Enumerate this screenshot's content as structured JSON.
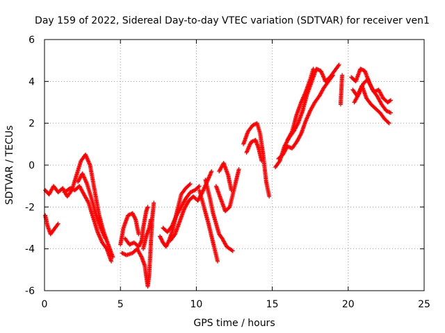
{
  "chart_data": {
    "type": "scatter",
    "title": "Day 159 of 2022, Sidereal Day-to-day VTEC variation (SDTVAR) for receiver ven1",
    "xlabel": "GPS time / hours",
    "ylabel": "SDTVAR / TECUs",
    "xlim": [
      0,
      25
    ],
    "ylim": [
      -6,
      6
    ],
    "xticks": [
      0,
      5,
      10,
      15,
      20,
      25
    ],
    "yticks": [
      -6,
      -4,
      -2,
      0,
      2,
      4,
      6
    ],
    "grid": true,
    "marker": "+",
    "series": [
      {
        "name": "ven1",
        "color": "#ff0000",
        "segments": [
          [
            [
              0.05,
              -1.2
            ],
            [
              0.3,
              -1.4
            ],
            [
              0.6,
              -1.0
            ],
            [
              0.9,
              -1.3
            ],
            [
              1.2,
              -1.1
            ],
            [
              1.5,
              -1.5
            ],
            [
              1.8,
              -1.2
            ],
            [
              2.1,
              -0.5
            ],
            [
              2.4,
              0.2
            ],
            [
              2.7,
              0.5
            ],
            [
              3.0,
              0.0
            ],
            [
              3.3,
              -1.2
            ],
            [
              3.6,
              -2.4
            ],
            [
              3.9,
              -3.2
            ],
            [
              4.2,
              -3.8
            ],
            [
              4.5,
              -4.4
            ]
          ],
          [
            [
              0.05,
              -2.4
            ],
            [
              0.2,
              -2.9
            ],
            [
              0.4,
              -3.3
            ],
            [
              0.6,
              -3.1
            ],
            [
              0.9,
              -2.8
            ]
          ],
          [
            [
              1.3,
              -1.3
            ],
            [
              1.7,
              -1.1
            ],
            [
              2.0,
              -1.2
            ],
            [
              2.3,
              -1.0
            ],
            [
              2.6,
              -1.4
            ],
            [
              2.9,
              -1.8
            ],
            [
              3.2,
              -2.5
            ],
            [
              3.5,
              -3.2
            ],
            [
              3.8,
              -3.7
            ],
            [
              4.1,
              -4.0
            ],
            [
              4.4,
              -4.6
            ]
          ],
          [
            [
              2.2,
              -0.8
            ],
            [
              2.5,
              -0.4
            ],
            [
              2.8,
              -0.9
            ],
            [
              3.1,
              -1.6
            ],
            [
              3.4,
              -2.4
            ],
            [
              3.7,
              -3.0
            ],
            [
              4.0,
              -3.5
            ]
          ],
          [
            [
              5.0,
              -3.8
            ],
            [
              5.2,
              -3.0
            ],
            [
              5.5,
              -2.4
            ],
            [
              5.8,
              -2.3
            ],
            [
              6.0,
              -2.6
            ],
            [
              6.2,
              -3.3
            ]
          ],
          [
            [
              5.1,
              -4.2
            ],
            [
              5.4,
              -4.3
            ],
            [
              5.8,
              -4.2
            ],
            [
              6.1,
              -4.0
            ],
            [
              6.4,
              -4.4
            ],
            [
              6.6,
              -4.8
            ],
            [
              6.8,
              -5.8
            ],
            [
              6.9,
              -5.2
            ],
            [
              7.0,
              -3.8
            ],
            [
              7.1,
              -2.5
            ],
            [
              7.2,
              -1.8
            ]
          ],
          [
            [
              5.3,
              -3.5
            ],
            [
              5.6,
              -3.8
            ],
            [
              5.9,
              -3.7
            ],
            [
              6.2,
              -3.9
            ],
            [
              6.4,
              -3.6
            ],
            [
              6.5,
              -3.0
            ],
            [
              6.7,
              -2.2
            ],
            [
              6.8,
              -2.0
            ]
          ],
          [
            [
              6.5,
              -4.0
            ],
            [
              6.7,
              -3.4
            ],
            [
              6.9,
              -3.0
            ],
            [
              7.0,
              -2.6
            ]
          ],
          [
            [
              7.6,
              -3.4
            ],
            [
              7.8,
              -3.7
            ],
            [
              8.0,
              -3.9
            ],
            [
              8.2,
              -3.6
            ],
            [
              8.4,
              -3.2
            ],
            [
              8.7,
              -2.3
            ],
            [
              9.0,
              -1.4
            ],
            [
              9.3,
              -1.1
            ],
            [
              9.6,
              -0.9
            ]
          ],
          [
            [
              7.8,
              -3.0
            ],
            [
              8.1,
              -3.2
            ],
            [
              8.4,
              -2.9
            ],
            [
              8.7,
              -2.4
            ],
            [
              9.0,
              -2.0
            ],
            [
              9.3,
              -1.6
            ],
            [
              9.6,
              -1.3
            ],
            [
              9.9,
              -1.2
            ],
            [
              10.2,
              -1.0
            ]
          ],
          [
            [
              8.3,
              -3.6
            ],
            [
              8.6,
              -3.3
            ],
            [
              8.9,
              -2.7
            ],
            [
              9.2,
              -2.1
            ],
            [
              9.5,
              -1.7
            ],
            [
              9.8,
              -1.5
            ],
            [
              10.1,
              -1.7
            ],
            [
              10.4,
              -1.3
            ],
            [
              10.7,
              -0.8
            ],
            [
              11.0,
              -0.3
            ]
          ],
          [
            [
              10.2,
              -1.2
            ],
            [
              10.5,
              -2.0
            ],
            [
              10.8,
              -2.8
            ],
            [
              11.0,
              -3.4
            ],
            [
              11.2,
              -4.0
            ],
            [
              11.4,
              -4.6
            ]
          ],
          [
            [
              10.6,
              -0.7
            ],
            [
              10.9,
              -1.6
            ],
            [
              11.1,
              -2.3
            ],
            [
              11.3,
              -2.8
            ],
            [
              11.5,
              -3.3
            ],
            [
              11.7,
              -3.5
            ],
            [
              12.0,
              -3.9
            ],
            [
              12.4,
              -4.1
            ]
          ],
          [
            [
              11.3,
              -1.0
            ],
            [
              11.6,
              -1.6
            ],
            [
              11.9,
              -2.2
            ],
            [
              12.2,
              -2.0
            ],
            [
              12.4,
              -1.4
            ],
            [
              12.6,
              -0.8
            ],
            [
              12.8,
              -0.2
            ]
          ],
          [
            [
              11.5,
              -0.3
            ],
            [
              11.8,
              0.1
            ],
            [
              12.1,
              -0.5
            ],
            [
              12.3,
              -1.2
            ]
          ],
          [
            [
              13.1,
              1.0
            ],
            [
              13.4,
              1.6
            ],
            [
              13.7,
              1.9
            ],
            [
              14.0,
              2.0
            ],
            [
              14.2,
              1.5
            ],
            [
              14.4,
              0.5
            ],
            [
              14.6,
              -0.8
            ],
            [
              14.8,
              -1.5
            ]
          ],
          [
            [
              13.3,
              0.6
            ],
            [
              13.6,
              1.1
            ],
            [
              13.9,
              1.2
            ],
            [
              14.1,
              0.8
            ],
            [
              14.3,
              0.2
            ]
          ],
          [
            [
              15.2,
              -0.1
            ],
            [
              15.5,
              0.2
            ],
            [
              15.8,
              0.9
            ],
            [
              16.1,
              1.3
            ],
            [
              16.4,
              1.6
            ],
            [
              16.7,
              2.0
            ],
            [
              17.0,
              2.6
            ],
            [
              17.3,
              3.4
            ],
            [
              17.6,
              4.0
            ],
            [
              17.9,
              4.6
            ],
            [
              18.2,
              4.5
            ],
            [
              18.5,
              4.0
            ],
            [
              18.8,
              4.2
            ],
            [
              19.1,
              4.5
            ],
            [
              19.4,
              4.8
            ]
          ],
          [
            [
              15.4,
              0.3
            ],
            [
              15.7,
              0.5
            ],
            [
              16.0,
              0.9
            ],
            [
              16.3,
              0.8
            ],
            [
              16.6,
              1.1
            ],
            [
              16.9,
              1.5
            ],
            [
              17.2,
              2.1
            ],
            [
              17.5,
              2.6
            ],
            [
              17.8,
              3.0
            ],
            [
              18.1,
              3.3
            ],
            [
              18.4,
              3.7
            ],
            [
              18.7,
              4.0
            ],
            [
              19.0,
              4.3
            ]
          ],
          [
            [
              16.0,
              1.2
            ],
            [
              16.3,
              1.6
            ],
            [
              16.6,
              2.4
            ],
            [
              16.9,
              3.0
            ],
            [
              17.2,
              3.5
            ],
            [
              17.5,
              4.1
            ],
            [
              17.7,
              4.6
            ]
          ],
          [
            [
              19.6,
              4.3
            ],
            [
              19.5,
              2.9
            ]
          ],
          [
            [
              20.2,
              4.2
            ],
            [
              20.5,
              4.0
            ],
            [
              20.8,
              4.6
            ],
            [
              21.1,
              4.5
            ],
            [
              21.4,
              3.9
            ],
            [
              21.7,
              3.5
            ],
            [
              22.0,
              3.6
            ],
            [
              22.3,
              3.2
            ],
            [
              22.6,
              3.0
            ],
            [
              22.8,
              3.1
            ]
          ],
          [
            [
              20.3,
              3.6
            ],
            [
              20.6,
              3.3
            ],
            [
              20.9,
              3.8
            ],
            [
              21.2,
              3.2
            ],
            [
              21.5,
              2.9
            ],
            [
              21.8,
              2.7
            ],
            [
              22.1,
              2.5
            ],
            [
              22.4,
              2.2
            ],
            [
              22.7,
              2.0
            ]
          ],
          [
            [
              20.4,
              3.0
            ],
            [
              20.7,
              3.4
            ],
            [
              21.0,
              3.9
            ],
            [
              21.3,
              4.1
            ],
            [
              21.6,
              3.6
            ],
            [
              21.9,
              3.3
            ],
            [
              22.2,
              2.9
            ],
            [
              22.5,
              2.6
            ],
            [
              22.8,
              2.5
            ]
          ]
        ]
      }
    ]
  }
}
